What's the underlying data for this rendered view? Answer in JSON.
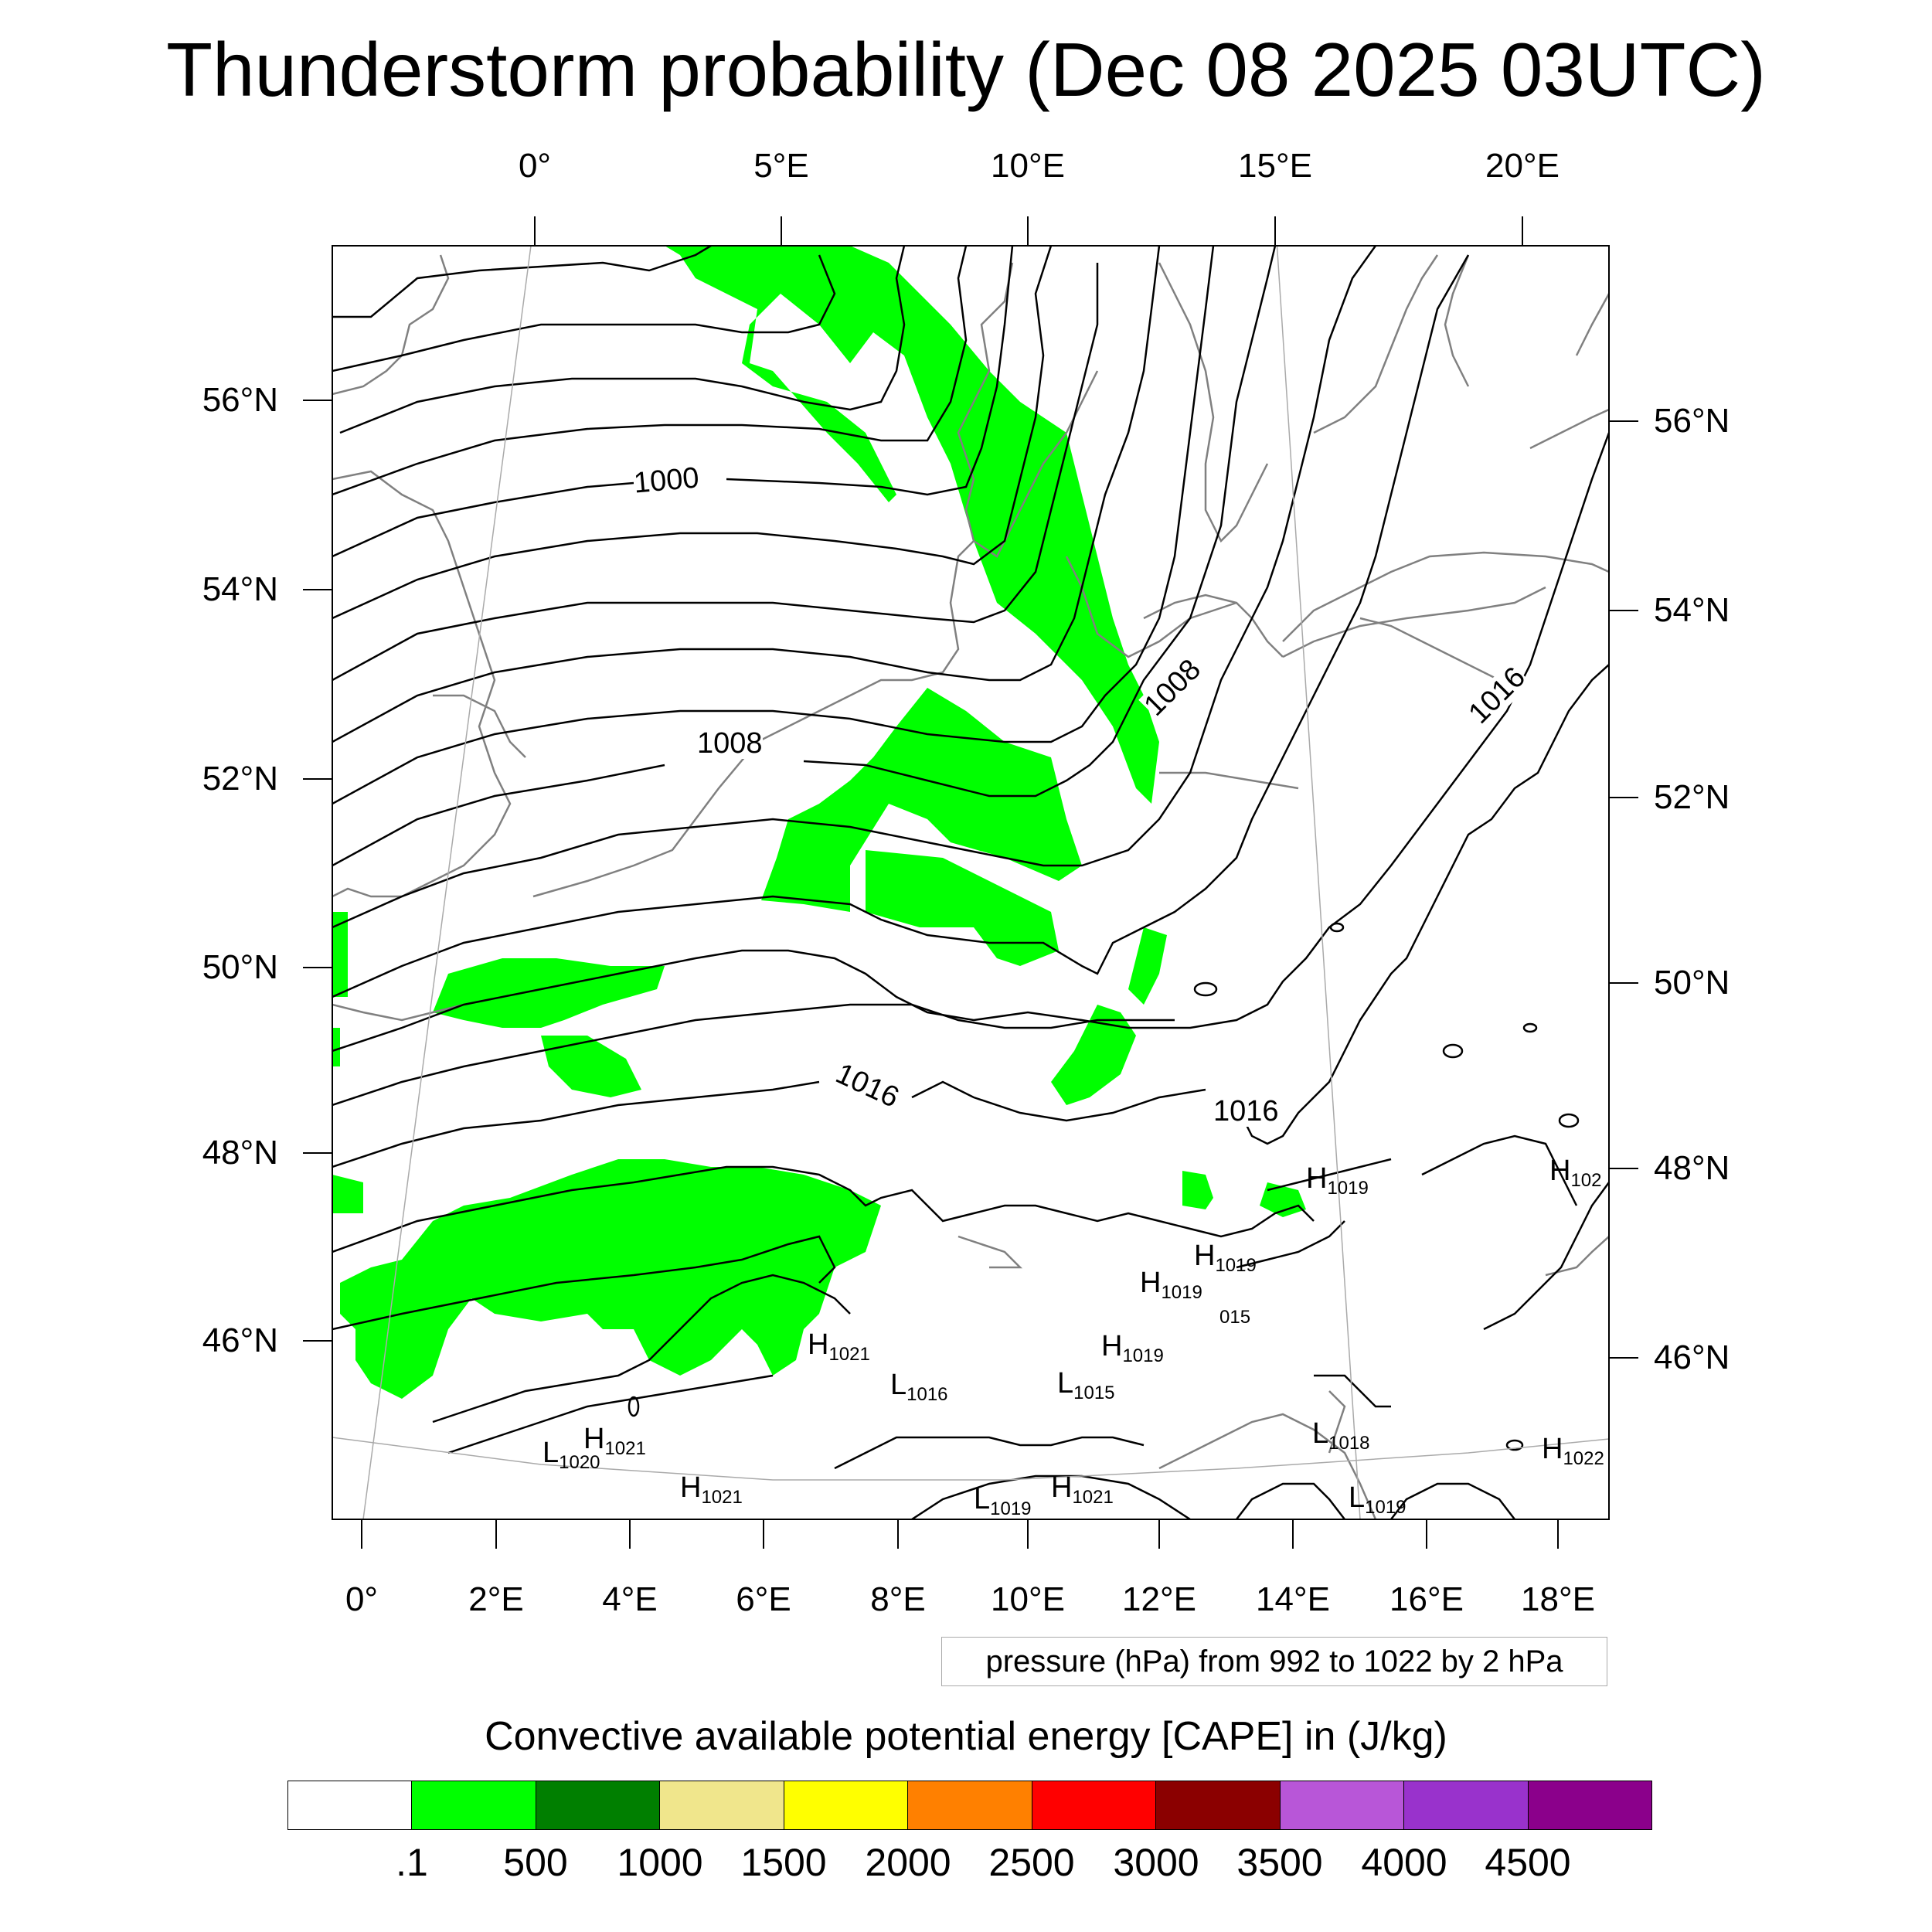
{
  "title": "Thunderstorm probability (Dec 08 2025 03UTC)",
  "top_lon_labels": [
    "0°",
    "5°E",
    "10°E",
    "15°E",
    "20°E"
  ],
  "bottom_lon_labels": [
    "0°",
    "2°E",
    "4°E",
    "6°E",
    "8°E",
    "10°E",
    "12°E",
    "14°E",
    "16°E",
    "18°E"
  ],
  "left_lat_labels": [
    "56°N",
    "54°N",
    "52°N",
    "50°N",
    "48°N",
    "46°N"
  ],
  "right_lat_labels": [
    "56°N",
    "54°N",
    "52°N",
    "50°N",
    "48°N",
    "46°N"
  ],
  "isobar_labels": [
    "1000",
    "1008",
    "1016",
    "1008",
    "1016",
    "1016"
  ],
  "pressure_centers": [
    {
      "type": "H",
      "value": "1019"
    },
    {
      "type": "H",
      "value": "102"
    },
    {
      "type": "H",
      "value": "1019"
    },
    {
      "type": "H",
      "value": "1019"
    },
    {
      "type": "",
      "value": "015"
    },
    {
      "type": "H",
      "value": "1021"
    },
    {
      "type": "H",
      "value": "1019"
    },
    {
      "type": "L",
      "value": "1016"
    },
    {
      "type": "L",
      "value": "1015"
    },
    {
      "type": "L",
      "value": "1018"
    },
    {
      "type": "H",
      "value": "1022"
    },
    {
      "type": "H",
      "value": "1021"
    },
    {
      "type": "L",
      "value": "1020"
    },
    {
      "type": "H",
      "value": "1021"
    },
    {
      "type": "L",
      "value": "1019"
    },
    {
      "type": "H",
      "value": "1021"
    },
    {
      "type": "L",
      "value": "1019"
    }
  ],
  "pressure_note": "pressure (hPa) from 992 to 1022 by 2 hPa",
  "colorbar": {
    "title": "Convective available potential energy [CAPE] in (J/kg)",
    "colors": [
      "#ffffff",
      "#00ff00",
      "#007f00",
      "#f0e68c",
      "#ffff00",
      "#ff8000",
      "#ff0000",
      "#8b0000",
      "#b856d8",
      "#9932cc",
      "#8b008b"
    ],
    "ticks": [
      ".1",
      "500",
      "1000",
      "1500",
      "2000",
      "2500",
      "3000",
      "3500",
      "4000",
      "4500"
    ]
  },
  "colors": {
    "cape_low": "#00ff00",
    "isobar": "#000000",
    "coastline": "#808080",
    "grid": "#aaaaaa"
  }
}
